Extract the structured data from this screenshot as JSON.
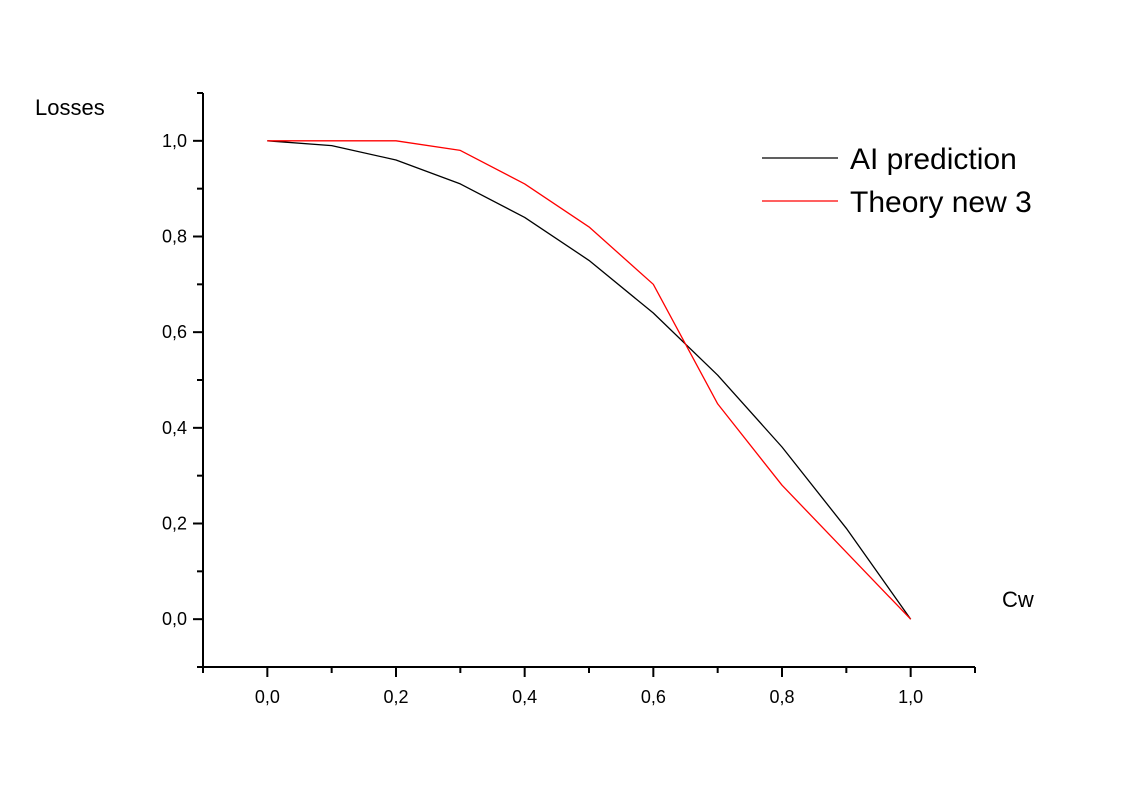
{
  "chart_data": {
    "type": "line",
    "title": "",
    "xlabel": "Cw",
    "ylabel": "Losses",
    "xlim": [
      -0.1,
      1.1
    ],
    "ylim": [
      -0.1,
      1.1
    ],
    "xticks": [
      0.0,
      0.2,
      0.4,
      0.6,
      0.8,
      1.0
    ],
    "yticks": [
      0.0,
      0.2,
      0.4,
      0.6,
      0.8,
      1.0
    ],
    "xtick_labels": [
      "0,0",
      "0,2",
      "0,4",
      "0,6",
      "0,8",
      "1,0"
    ],
    "ytick_labels": [
      "0,0",
      "0,2",
      "0,4",
      "0,6",
      "0,8",
      "1,0"
    ],
    "grid": false,
    "legend_position": "top-right",
    "series": [
      {
        "name": "AI prediction",
        "color": "#000000",
        "x": [
          0.0,
          0.1,
          0.2,
          0.3,
          0.4,
          0.5,
          0.6,
          0.7,
          0.8,
          0.9,
          1.0
        ],
        "y": [
          1.0,
          0.99,
          0.96,
          0.91,
          0.84,
          0.75,
          0.64,
          0.51,
          0.36,
          0.19,
          0.0
        ]
      },
      {
        "name": "Theory new 3",
        "color": "#ff0000",
        "x": [
          0.0,
          0.1,
          0.2,
          0.3,
          0.4,
          0.5,
          0.6,
          0.7,
          0.8,
          0.9,
          1.0
        ],
        "y": [
          1.0,
          1.0,
          1.0,
          0.98,
          0.91,
          0.82,
          0.7,
          0.45,
          0.28,
          0.14,
          0.0
        ]
      }
    ]
  }
}
